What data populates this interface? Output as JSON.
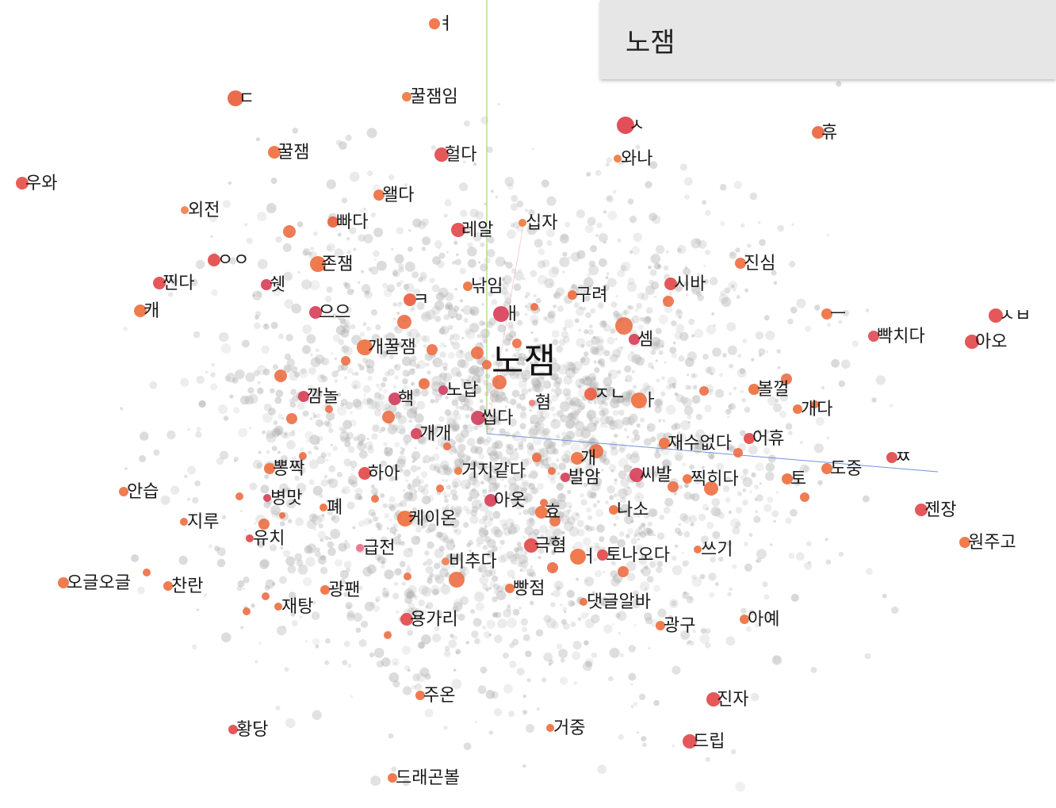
{
  "search": {
    "query": "노잼"
  },
  "focus": {
    "label": "노잼",
    "color": "#ef7040"
  },
  "colors": {
    "background_point": "#b0b0b0",
    "axis_y": "#8ad36a",
    "axis_x": "#6f95d8"
  },
  "neighbors": [
    {
      "label": "ㅕ",
      "c": "#ef7040"
    },
    {
      "label": "ㄷ",
      "c": "#e9603e"
    },
    {
      "label": "꿀잼임",
      "c": "#ef7a40"
    },
    {
      "label": "ㅅ",
      "c": "#e0404a"
    },
    {
      "label": "휴",
      "c": "#ec6640"
    },
    {
      "label": "꿀잼",
      "c": "#ef7040"
    },
    {
      "label": "헐다",
      "c": "#e24a4c"
    },
    {
      "label": "와나",
      "c": "#ef7a40"
    },
    {
      "label": "우와",
      "c": "#e65048"
    },
    {
      "label": "왤다",
      "c": "#ef7040"
    },
    {
      "label": "외전",
      "c": "#f08050"
    },
    {
      "label": "빠다",
      "c": "#e9603e"
    },
    {
      "label": "레알",
      "c": "#e24a4c"
    },
    {
      "label": "십자",
      "c": "#ef7a40"
    },
    {
      "label": "ㅇㅇ",
      "c": "#e24a4c"
    },
    {
      "label": "존잼",
      "c": "#ef7040"
    },
    {
      "label": "진심",
      "c": "#ef7040"
    },
    {
      "label": "찐다",
      "c": "#e24a4c"
    },
    {
      "label": "쉣",
      "c": "#d8405a"
    },
    {
      "label": "낚임",
      "c": "#ef7040"
    },
    {
      "label": "시바",
      "c": "#e24a4c"
    },
    {
      "label": "구려",
      "c": "#ef7040"
    },
    {
      "label": "ㅋ",
      "c": "#ec5c40"
    },
    {
      "label": "캐",
      "c": "#ef7040"
    },
    {
      "label": "으으",
      "c": "#d8405a"
    },
    {
      "label": "ㅐ",
      "c": "#d8405a"
    },
    {
      "label": "ㅡ",
      "c": "#ef7040"
    },
    {
      "label": "빡치다",
      "c": "#e04c58"
    },
    {
      "label": "ㅅㅂ",
      "c": "#e24a4c"
    },
    {
      "label": "셈",
      "c": "#d8405a"
    },
    {
      "label": "아오",
      "c": "#e24a4c"
    },
    {
      "label": "개꿀잼",
      "c": "#ef7040"
    },
    {
      "label": "깜놀",
      "c": "#d8405a"
    },
    {
      "label": "핵",
      "c": "#d04060"
    },
    {
      "label": "노답",
      "c": "#d04068"
    },
    {
      "label": "혐",
      "c": "#f08080"
    },
    {
      "label": "ㅈㄴ",
      "c": "#ec6040"
    },
    {
      "label": "ㅏ",
      "c": "#ef7040"
    },
    {
      "label": "볼껄",
      "c": "#ef7040"
    },
    {
      "label": "개다",
      "c": "#ef7040"
    },
    {
      "label": "씹다",
      "c": "#d04060"
    },
    {
      "label": "개개",
      "c": "#d8405a"
    },
    {
      "label": "개",
      "c": "#ef7040"
    },
    {
      "label": "재수없다",
      "c": "#ef7040"
    },
    {
      "label": "어휴",
      "c": "#e24a4c"
    },
    {
      "label": "ㅉ",
      "c": "#e24a4c"
    },
    {
      "label": "뽕짝",
      "c": "#ef7040"
    },
    {
      "label": "하아",
      "c": "#e24a4c"
    },
    {
      "label": "거지같다",
      "c": "#ef7a40"
    },
    {
      "label": "발암",
      "c": "#d8405a"
    },
    {
      "label": "씨발",
      "c": "#d8405a"
    },
    {
      "label": "찍히다",
      "c": "#ef7040"
    },
    {
      "label": "토",
      "c": "#ef7040"
    },
    {
      "label": "도중",
      "c": "#ef7040"
    },
    {
      "label": "안습",
      "c": "#ef7040"
    },
    {
      "label": "병맛",
      "c": "#d8405a"
    },
    {
      "label": "폐",
      "c": "#ef7040"
    },
    {
      "label": "아옷",
      "c": "#d8405a"
    },
    {
      "label": "젠장",
      "c": "#e24a4c"
    },
    {
      "label": "지루",
      "c": "#ef7040"
    },
    {
      "label": "케이온",
      "c": "#ef7040"
    },
    {
      "label": "효",
      "c": "#ef7040"
    },
    {
      "label": "나소",
      "c": "#ef7040"
    },
    {
      "label": "유치",
      "c": "#e24a4c"
    },
    {
      "label": "급전",
      "c": "#f07090"
    },
    {
      "label": "극혐",
      "c": "#e24a4c"
    },
    {
      "label": "원주고",
      "c": "#ef7040"
    },
    {
      "label": "ㅓ",
      "c": "#ef7040"
    },
    {
      "label": "토나오다",
      "c": "#e24a4c"
    },
    {
      "label": "쓰기",
      "c": "#ef7040"
    },
    {
      "label": "비추다",
      "c": "#f08050"
    },
    {
      "label": "오글오글",
      "c": "#ef7040"
    },
    {
      "label": "찬란",
      "c": "#ef7040"
    },
    {
      "label": "광팬",
      "c": "#ef7040"
    },
    {
      "label": "빵점",
      "c": "#ef7040"
    },
    {
      "label": "재탕",
      "c": "#ef7040"
    },
    {
      "label": "댓글알바",
      "c": "#ef7040"
    },
    {
      "label": "용가리",
      "c": "#e24a4c"
    },
    {
      "label": "광구",
      "c": "#ef7040"
    },
    {
      "label": "아예",
      "c": "#ef7040"
    },
    {
      "label": "주온",
      "c": "#ef7040"
    },
    {
      "label": "진자",
      "c": "#e24a4c"
    },
    {
      "label": "황당",
      "c": "#e24a4c"
    },
    {
      "label": "거중",
      "c": "#ef7040"
    },
    {
      "label": "드립",
      "c": "#e24a4c"
    },
    {
      "label": "드래곤볼",
      "c": "#ef7040"
    }
  ]
}
